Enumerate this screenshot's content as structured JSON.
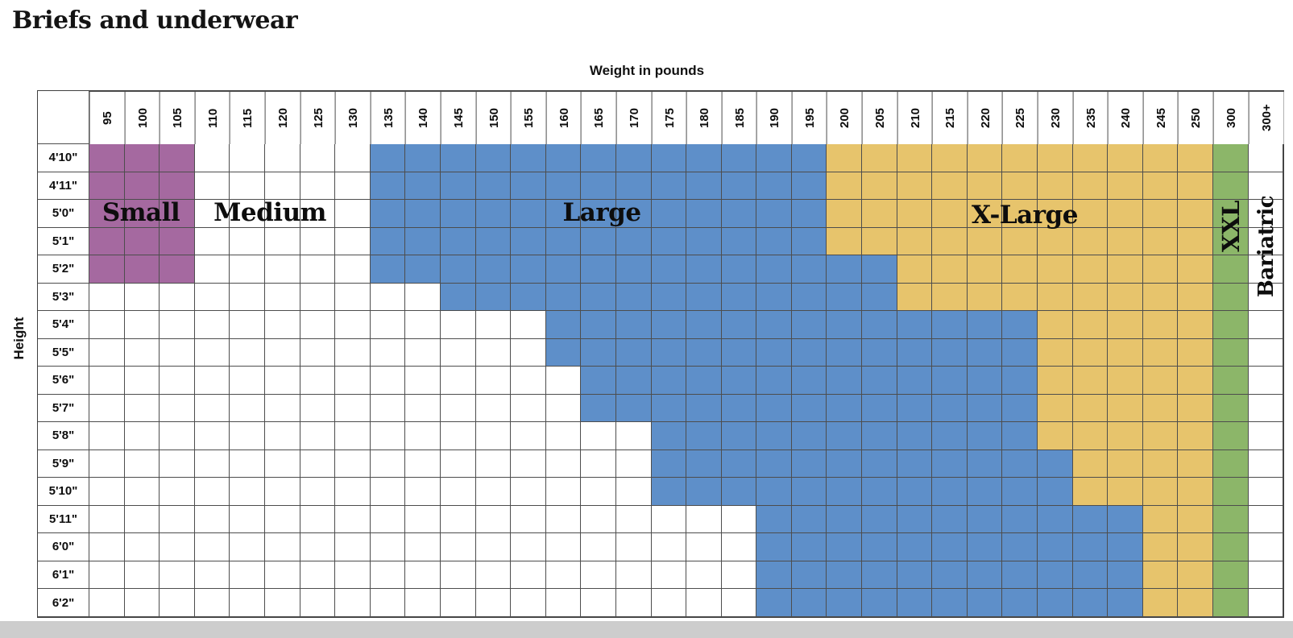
{
  "title": "Briefs and underwear",
  "axes": {
    "x_label": "Weight in pounds",
    "y_label": "Height"
  },
  "sizes": {
    "small": {
      "label": "Small",
      "color": "#A569A0"
    },
    "medium": {
      "label": "Medium",
      "color": "#FFFFFF"
    },
    "large": {
      "label": "Large",
      "color": "#5E8FC9"
    },
    "xlarge": {
      "label": "X-Large",
      "color": "#E7C46C"
    },
    "xxl": {
      "label": "XXL",
      "color": "#8CB669"
    },
    "bariatric": {
      "label": "Bariatric",
      "color": "#FFFFFF"
    }
  },
  "grid_line_color": "#4d4d4d",
  "chart_data": {
    "type": "heatmap",
    "title": "Briefs and underwear",
    "xlabel": "Weight in pounds",
    "ylabel": "Height",
    "x_categories": [
      "95",
      "100",
      "105",
      "110",
      "115",
      "120",
      "125",
      "130",
      "135",
      "140",
      "145",
      "150",
      "155",
      "160",
      "165",
      "170",
      "175",
      "180",
      "185",
      "190",
      "195",
      "200",
      "205",
      "210",
      "215",
      "220",
      "225",
      "230",
      "235",
      "240",
      "245",
      "250",
      "300",
      "300+"
    ],
    "y_categories": [
      "4'10\"",
      "4'11\"",
      "5'0\"",
      "5'1\"",
      "5'2\"",
      "5'3\"",
      "5'4\"",
      "5'5\"",
      "5'6\"",
      "5'7\"",
      "5'8\"",
      "5'9\"",
      "5'10\"",
      "5'11\"",
      "6'0\"",
      "6'1\"",
      "6'2\""
    ],
    "legend": [
      "Small",
      "Medium",
      "Large",
      "X-Large",
      "XXL",
      "Bariatric"
    ],
    "rows": [
      {
        "height": "4'10\"",
        "small": [
          95,
          105
        ],
        "large": [
          135,
          195
        ],
        "xlarge": [
          200,
          250
        ],
        "xxl": "300",
        "bariatric": "300+"
      },
      {
        "height": "4'11\"",
        "small": [
          95,
          105
        ],
        "large": [
          135,
          195
        ],
        "xlarge": [
          200,
          250
        ],
        "xxl": "300",
        "bariatric": "300+"
      },
      {
        "height": "5'0\"",
        "small": [
          95,
          105
        ],
        "large": [
          135,
          195
        ],
        "xlarge": [
          200,
          250
        ],
        "xxl": "300",
        "bariatric": "300+"
      },
      {
        "height": "5'1\"",
        "small": [
          95,
          105
        ],
        "large": [
          135,
          195
        ],
        "xlarge": [
          200,
          250
        ],
        "xxl": "300",
        "bariatric": "300+"
      },
      {
        "height": "5'2\"",
        "small": [
          95,
          105
        ],
        "large": [
          135,
          205
        ],
        "xlarge": [
          210,
          250
        ],
        "xxl": "300",
        "bariatric": "300+"
      },
      {
        "height": "5'3\"",
        "small": null,
        "large": [
          145,
          205
        ],
        "xlarge": [
          210,
          250
        ],
        "xxl": "300",
        "bariatric": "300+"
      },
      {
        "height": "5'4\"",
        "small": null,
        "large": [
          160,
          225
        ],
        "xlarge": [
          230,
          250
        ],
        "xxl": "300",
        "bariatric": "300+"
      },
      {
        "height": "5'5\"",
        "small": null,
        "large": [
          160,
          225
        ],
        "xlarge": [
          230,
          250
        ],
        "xxl": "300",
        "bariatric": "300+"
      },
      {
        "height": "5'6\"",
        "small": null,
        "large": [
          165,
          225
        ],
        "xlarge": [
          230,
          250
        ],
        "xxl": "300",
        "bariatric": "300+"
      },
      {
        "height": "5'7\"",
        "small": null,
        "large": [
          165,
          225
        ],
        "xlarge": [
          230,
          250
        ],
        "xxl": "300",
        "bariatric": "300+"
      },
      {
        "height": "5'8\"",
        "small": null,
        "large": [
          175,
          225
        ],
        "xlarge": [
          230,
          250
        ],
        "xxl": "300",
        "bariatric": "300+"
      },
      {
        "height": "5'9\"",
        "small": null,
        "large": [
          175,
          230
        ],
        "xlarge": [
          235,
          250
        ],
        "xxl": "300",
        "bariatric": "300+"
      },
      {
        "height": "5'10\"",
        "small": null,
        "large": [
          175,
          230
        ],
        "xlarge": [
          235,
          250
        ],
        "xxl": "300",
        "bariatric": "300+"
      },
      {
        "height": "5'11\"",
        "small": null,
        "large": [
          190,
          240
        ],
        "xlarge": [
          245,
          250
        ],
        "xxl": "300",
        "bariatric": "300+"
      },
      {
        "height": "6'0\"",
        "small": null,
        "large": [
          190,
          240
        ],
        "xlarge": [
          245,
          250
        ],
        "xxl": "300",
        "bariatric": "300+"
      },
      {
        "height": "6'1\"",
        "small": null,
        "large": [
          190,
          240
        ],
        "xlarge": [
          245,
          250
        ],
        "xxl": "300",
        "bariatric": "300+"
      },
      {
        "height": "6'2\"",
        "small": null,
        "large": [
          190,
          240
        ],
        "xlarge": [
          245,
          250
        ],
        "xxl": "300",
        "bariatric": "300+"
      }
    ]
  }
}
